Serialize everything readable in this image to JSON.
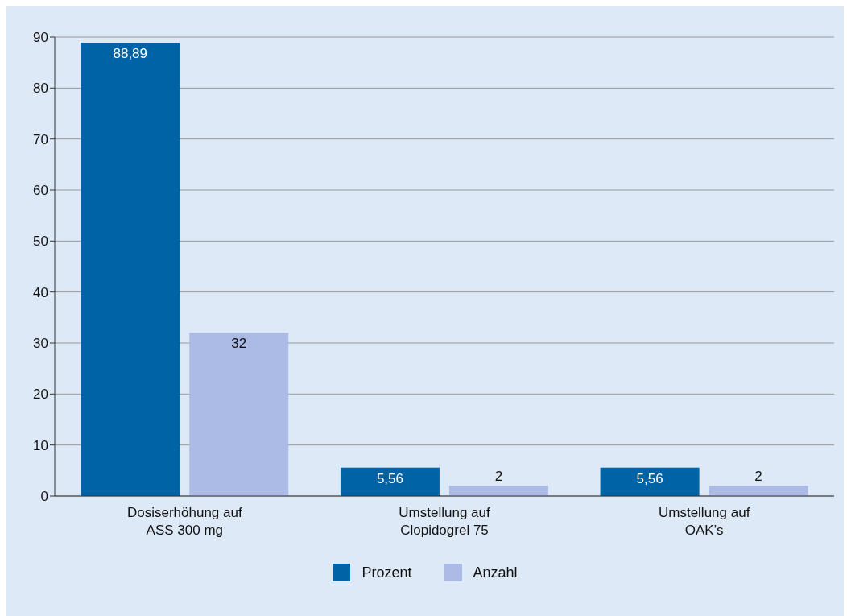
{
  "chart_data": {
    "type": "bar",
    "categories": [
      "Dosiserhöhung auf\nASS 300 mg",
      "Umstellung auf\nClopidogrel 75",
      "Umstellung auf\nOAK’s"
    ],
    "series": [
      {
        "name": "Prozent",
        "color": "#0063a6",
        "values": [
          88.89,
          5.56,
          5.56
        ],
        "value_labels": [
          "88,89",
          "5,56",
          "5,56"
        ]
      },
      {
        "name": "Anzahl",
        "color": "#abbbe6",
        "values": [
          32,
          2,
          2
        ],
        "value_labels": [
          "32",
          "2",
          "2"
        ]
      }
    ],
    "ylim": [
      0,
      90
    ],
    "yticks": [
      0,
      10,
      20,
      30,
      40,
      50,
      60,
      70,
      80,
      90
    ],
    "grid": "y",
    "legend": "bottom"
  }
}
